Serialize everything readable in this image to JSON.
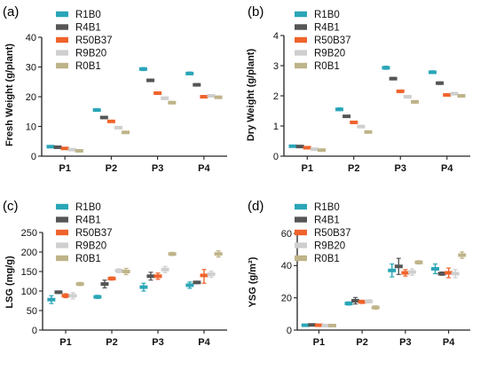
{
  "chart_data": [
    {
      "type": "scatter",
      "panel_label": "(a)",
      "ylabel": "Fresh Weight (g/plant)",
      "categories": [
        "P1",
        "P2",
        "P3",
        "P4"
      ],
      "ylim": [
        0,
        40
      ],
      "yticks": [
        "0",
        "10",
        "20",
        "30",
        "40"
      ],
      "legend": [
        "R1B0",
        "R4B1",
        "R50B37",
        "R9B20",
        "R0B1"
      ],
      "series": [
        {
          "name": "R1B0",
          "color": "#2aa6b8",
          "values": [
            3.2,
            15.5,
            29.3,
            27.8
          ],
          "err_up": [
            0.3,
            0.5,
            0.5,
            0.5
          ],
          "err_down": [
            0.3,
            0.4,
            0.5,
            0.4
          ]
        },
        {
          "name": "R4B1",
          "color": "#555555",
          "values": [
            3.0,
            13.0,
            25.5,
            24.0
          ],
          "err_up": [
            0.3,
            0.3,
            0.4,
            0.4
          ],
          "err_down": [
            0.3,
            0.3,
            0.4,
            0.4
          ]
        },
        {
          "name": "R50B37",
          "color": "#f0632c",
          "values": [
            2.6,
            11.7,
            21.2,
            20.0
          ],
          "err_up": [
            0.3,
            0.3,
            0.4,
            0.4
          ],
          "err_down": [
            0.3,
            0.3,
            0.4,
            0.4
          ]
        },
        {
          "name": "R9B20",
          "color": "#cfcfcf",
          "values": [
            2.2,
            9.6,
            19.5,
            20.3
          ],
          "err_up": [
            0.2,
            0.3,
            0.4,
            0.4
          ],
          "err_down": [
            0.2,
            0.3,
            0.4,
            0.4
          ]
        },
        {
          "name": "R0B1",
          "color": "#bfb489",
          "values": [
            1.8,
            8.0,
            18.0,
            19.8
          ],
          "err_up": [
            0.2,
            0.3,
            0.4,
            0.4
          ],
          "err_down": [
            0.2,
            0.3,
            0.4,
            0.4
          ]
        }
      ]
    },
    {
      "type": "scatter",
      "panel_label": "(b)",
      "ylabel": "Dry Weight (g/plant)",
      "categories": [
        "P1",
        "P2",
        "P3",
        "P4"
      ],
      "ylim": [
        0,
        4
      ],
      "yticks": [
        "0",
        "1",
        "2",
        "3",
        "4"
      ],
      "legend": [
        "R1B0",
        "R4B1",
        "R50B37",
        "R9B20",
        "R0B1"
      ],
      "series": [
        {
          "name": "R1B0",
          "color": "#2aa6b8",
          "values": [
            0.33,
            1.55,
            2.93,
            2.78
          ],
          "err_up": [
            0.03,
            0.05,
            0.05,
            0.05
          ],
          "err_down": [
            0.03,
            0.04,
            0.05,
            0.04
          ]
        },
        {
          "name": "R4B1",
          "color": "#555555",
          "values": [
            0.32,
            1.32,
            2.57,
            2.42
          ],
          "err_up": [
            0.03,
            0.03,
            0.04,
            0.04
          ],
          "err_down": [
            0.03,
            0.03,
            0.04,
            0.04
          ]
        },
        {
          "name": "R50B37",
          "color": "#f0632c",
          "values": [
            0.28,
            1.12,
            2.15,
            2.03
          ],
          "err_up": [
            0.03,
            0.03,
            0.04,
            0.04
          ],
          "err_down": [
            0.03,
            0.03,
            0.04,
            0.04
          ]
        },
        {
          "name": "R9B20",
          "color": "#cfcfcf",
          "values": [
            0.23,
            0.98,
            1.97,
            2.07
          ],
          "err_up": [
            0.02,
            0.03,
            0.04,
            0.04
          ],
          "err_down": [
            0.02,
            0.03,
            0.04,
            0.04
          ]
        },
        {
          "name": "R0B1",
          "color": "#bfb489",
          "values": [
            0.2,
            0.8,
            1.8,
            2.0
          ],
          "err_up": [
            0.02,
            0.03,
            0.04,
            0.04
          ],
          "err_down": [
            0.02,
            0.03,
            0.04,
            0.04
          ]
        }
      ]
    },
    {
      "type": "scatter",
      "panel_label": "(c)",
      "ylabel": "LSG (mg/g)",
      "categories": [
        "P1",
        "P2",
        "P3",
        "P4"
      ],
      "ylim": [
        0,
        250
      ],
      "yticks": [
        "0",
        "50",
        "100",
        "150",
        "200",
        "250"
      ],
      "legend": [
        "R1B0",
        "R4B1",
        "R50B37",
        "R9B20",
        "R0B1"
      ],
      "series": [
        {
          "name": "R1B0",
          "color": "#2aa6b8",
          "values": [
            78,
            85,
            110,
            115
          ],
          "err_up": [
            10,
            4,
            10,
            8
          ],
          "err_down": [
            10,
            4,
            10,
            8
          ]
        },
        {
          "name": "R4B1",
          "color": "#555555",
          "values": [
            97,
            118,
            138,
            122
          ],
          "err_up": [
            3,
            10,
            10,
            3
          ],
          "err_down": [
            3,
            10,
            10,
            3
          ]
        },
        {
          "name": "R50B37",
          "color": "#f0632c",
          "values": [
            88,
            132,
            138,
            140
          ],
          "err_up": [
            5,
            4,
            8,
            15
          ],
          "err_down": [
            5,
            4,
            8,
            20
          ]
        },
        {
          "name": "R9B20",
          "color": "#cfcfcf",
          "values": [
            88,
            152,
            155,
            143
          ],
          "err_up": [
            8,
            5,
            8,
            8
          ],
          "err_down": [
            8,
            5,
            8,
            8
          ]
        },
        {
          "name": "R0B1",
          "color": "#bfb489",
          "values": [
            118,
            150,
            195,
            195
          ],
          "err_up": [
            4,
            8,
            4,
            8
          ],
          "err_down": [
            4,
            8,
            4,
            8
          ]
        }
      ]
    },
    {
      "type": "scatter",
      "panel_label": "(d)",
      "ylabel": "YSG (g/m²)",
      "categories": [
        "P1",
        "P2",
        "P3",
        "P4"
      ],
      "ylim": [
        0,
        60
      ],
      "yticks": [
        "0",
        "20",
        "40",
        "60"
      ],
      "legend": [
        "R1B0",
        "R4B1",
        "R50B37",
        "R9B20",
        "R0B1"
      ],
      "series": [
        {
          "name": "R1B0",
          "color": "#2aa6b8",
          "values": [
            3.0,
            16.5,
            37.0,
            38.0
          ],
          "err_up": [
            0.5,
            1.0,
            4.0,
            3.0
          ],
          "err_down": [
            0.5,
            1.0,
            4.0,
            3.0
          ]
        },
        {
          "name": "R4B1",
          "color": "#555555",
          "values": [
            3.2,
            18.2,
            39.5,
            35.0
          ],
          "err_up": [
            0.5,
            2.0,
            5.0,
            1.0
          ],
          "err_down": [
            0.5,
            2.0,
            5.0,
            1.0
          ]
        },
        {
          "name": "R50B37",
          "color": "#f0632c",
          "values": [
            3.0,
            17.5,
            35.5,
            35.5
          ],
          "err_up": [
            0.5,
            1.0,
            2.0,
            3.0
          ],
          "err_down": [
            0.5,
            1.0,
            2.0,
            3.0
          ]
        },
        {
          "name": "R9B20",
          "color": "#cfcfcf",
          "values": [
            2.8,
            17.8,
            36.0,
            35.0
          ],
          "err_up": [
            0.5,
            1.0,
            2.0,
            2.5
          ],
          "err_down": [
            0.5,
            1.0,
            2.0,
            2.5
          ]
        },
        {
          "name": "R0B1",
          "color": "#bfb489",
          "values": [
            2.8,
            14.0,
            42.0,
            46.5
          ],
          "err_up": [
            0.5,
            1.0,
            1.0,
            2.0
          ],
          "err_down": [
            0.5,
            1.0,
            1.0,
            2.0
          ]
        }
      ]
    }
  ]
}
